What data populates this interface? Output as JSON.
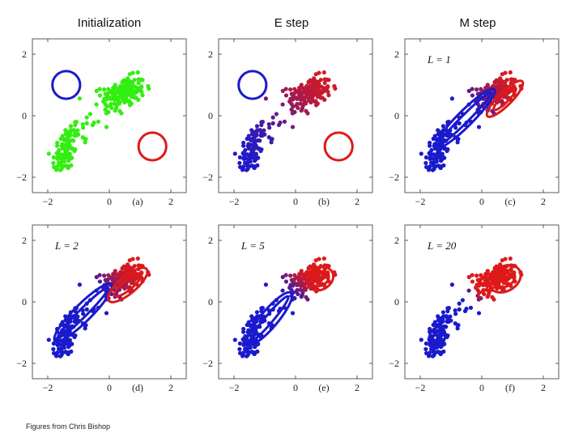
{
  "column_titles": [
    "Initialization",
    "E step",
    "M step"
  ],
  "credit": "Figures from Chris Bishop",
  "colors": {
    "blue": "#1a1acc",
    "red": "#dd1a1a",
    "green": "#33ee11",
    "axis": "#333333"
  },
  "chart_data": [
    {
      "panel": "(a)",
      "type": "scatter",
      "stage": "Initialization",
      "xlim": [
        -2.5,
        2.5
      ],
      "ylim": [
        -2.5,
        2.5
      ],
      "xticks": [
        -2,
        0,
        2
      ],
      "yticks": [
        -2,
        0,
        2
      ],
      "xtick_labels": [
        "−2",
        "0",
        "2"
      ],
      "ytick_labels": [
        "2",
        "0",
        "−2"
      ],
      "points_colored_by": "green (unlabelled)",
      "clusters": [
        {
          "center": [
            -1.4,
            -1.1
          ],
          "sd": [
            0.22,
            0.45
          ],
          "corr": 0.5
        },
        {
          "center": [
            0.45,
            0.75
          ],
          "sd": [
            0.35,
            0.25
          ],
          "corr": 0.3
        }
      ],
      "components": [
        {
          "color": "blue",
          "mean": [
            -1.4,
            1.0
          ],
          "radii": [
            [
              0.45,
              0.45
            ]
          ],
          "angle": 0
        },
        {
          "color": "red",
          "mean": [
            1.4,
            -1.0
          ],
          "radii": [
            [
              0.45,
              0.45
            ]
          ],
          "angle": 0
        }
      ]
    },
    {
      "panel": "(b)",
      "type": "scatter",
      "stage": "E step",
      "xlim": [
        -2.5,
        2.5
      ],
      "ylim": [
        -2.5,
        2.5
      ],
      "xticks": [
        -2,
        0,
        2
      ],
      "yticks": [
        -2,
        0,
        2
      ],
      "xtick_labels": [
        "−2",
        "0",
        "2"
      ],
      "ytick_labels": [
        "2",
        "0",
        "−2"
      ],
      "points_colored_by": "responsibility (blue → red)",
      "components": [
        {
          "color": "blue",
          "mean": [
            -1.4,
            1.0
          ],
          "radii": [
            [
              0.45,
              0.45
            ]
          ],
          "angle": 0
        },
        {
          "color": "red",
          "mean": [
            1.4,
            -1.0
          ],
          "radii": [
            [
              0.45,
              0.45
            ]
          ],
          "angle": 0
        }
      ]
    },
    {
      "panel": "(c)",
      "type": "scatter",
      "stage": "M step",
      "annotation": "L = 1",
      "xlim": [
        -2.5,
        2.5
      ],
      "ylim": [
        -2.5,
        2.5
      ],
      "xticks": [
        -2,
        0,
        2
      ],
      "yticks": [
        -2,
        0,
        2
      ],
      "xtick_labels": [
        "−2",
        "0",
        "2"
      ],
      "ytick_labels": [
        "2",
        "0",
        "−2"
      ],
      "points_colored_by": "responsibility (blue → red)",
      "components": [
        {
          "color": "blue",
          "mean": [
            -0.55,
            -0.1
          ],
          "radii": [
            [
              1.35,
              0.25
            ],
            [
              1.2,
              0.12
            ]
          ],
          "angle": 45
        },
        {
          "color": "red",
          "mean": [
            0.75,
            0.55
          ],
          "radii": [
            [
              0.8,
              0.22
            ],
            [
              0.5,
              0.12
            ]
          ],
          "angle": 45
        }
      ]
    },
    {
      "panel": "(d)",
      "type": "scatter",
      "stage": "M step",
      "annotation": "L = 2",
      "xlim": [
        -2.5,
        2.5
      ],
      "ylim": [
        -2.5,
        2.5
      ],
      "xticks": [
        -2,
        0,
        2
      ],
      "yticks": [
        -2,
        0,
        2
      ],
      "xtick_labels": [
        "−2",
        "0",
        "2"
      ],
      "ytick_labels": [
        "2",
        "0",
        "−2"
      ],
      "points_colored_by": "responsibility (blue → red)",
      "components": [
        {
          "color": "blue",
          "mean": [
            -0.85,
            -0.35
          ],
          "radii": [
            [
              1.3,
              0.28
            ],
            [
              1.15,
              0.13
            ]
          ],
          "angle": 45
        },
        {
          "color": "red",
          "mean": [
            0.6,
            0.55
          ],
          "radii": [
            [
              0.8,
              0.28
            ],
            [
              0.55,
              0.16
            ]
          ],
          "angle": 40
        }
      ]
    },
    {
      "panel": "(e)",
      "type": "scatter",
      "stage": "M step",
      "annotation": "L = 5",
      "xlim": [
        -2.5,
        2.5
      ],
      "ylim": [
        -2.5,
        2.5
      ],
      "xticks": [
        -2,
        0,
        2
      ],
      "yticks": [
        -2,
        0,
        2
      ],
      "xtick_labels": [
        "−2",
        "0",
        "2"
      ],
      "ytick_labels": [
        "2",
        "0",
        "−2"
      ],
      "points_colored_by": "responsibility (blue → red)",
      "components": [
        {
          "color": "blue",
          "mean": [
            -0.85,
            -0.55
          ],
          "radii": [
            [
              1.1,
              0.28
            ],
            [
              0.95,
              0.13
            ]
          ],
          "angle": 50
        },
        {
          "color": "red",
          "mean": [
            0.8,
            0.75
          ],
          "radii": [
            [
              0.45,
              0.35
            ],
            [
              0.3,
              0.22
            ]
          ],
          "angle": 30
        }
      ]
    },
    {
      "panel": "(f)",
      "type": "scatter",
      "stage": "M step",
      "annotation": "L = 20",
      "xlim": [
        -2.5,
        2.5
      ],
      "ylim": [
        -2.5,
        2.5
      ],
      "xticks": [
        -2,
        0,
        2
      ],
      "yticks": [
        -2,
        0,
        2
      ],
      "xtick_labels": [
        "−2",
        "0",
        "2"
      ],
      "ytick_labels": [
        "2",
        "0",
        "−2"
      ],
      "points_colored_by": "responsibility (blue → red)",
      "components": [
        {
          "color": "blue",
          "mean": [
            -1.45,
            -1.15
          ],
          "radii": [
            [
              0.35,
              0.25
            ],
            [
              0.2,
              0.13
            ]
          ],
          "angle": 70
        },
        {
          "color": "red",
          "mean": [
            0.75,
            0.75
          ],
          "radii": [
            [
              0.55,
              0.4
            ],
            [
              0.35,
              0.25
            ]
          ],
          "angle": 30
        }
      ]
    }
  ]
}
